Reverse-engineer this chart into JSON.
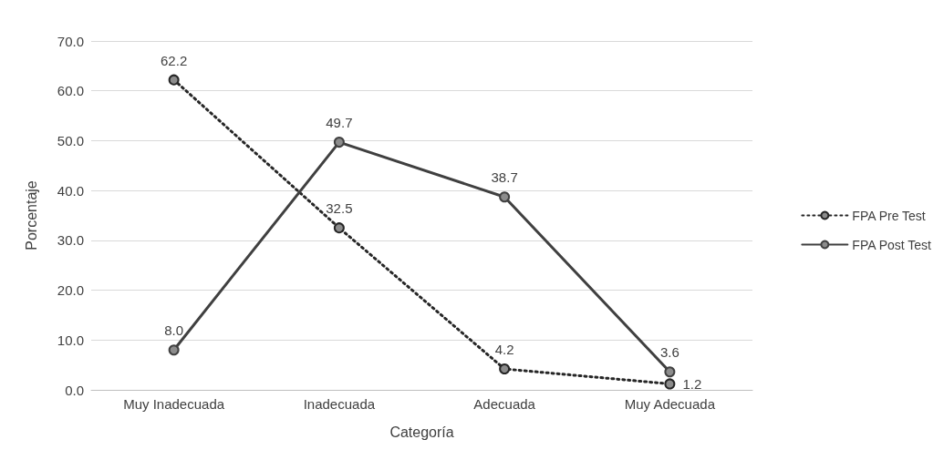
{
  "chart_data": {
    "type": "line",
    "xlabel": "Categoría",
    "ylabel": "Porcentaje",
    "categories": [
      "Muy Inadecuada",
      "Inadecuada",
      "Adecuada",
      "Muy Adecuada"
    ],
    "series": [
      {
        "name": "FPA Pre Test",
        "color": "#262626",
        "values": [
          62.2,
          32.5,
          4.2,
          1.2
        ],
        "line_style": "dotted",
        "value_labels": [
          "62.2",
          "32.5",
          "4.2",
          "1.2"
        ]
      },
      {
        "name": "FPA Post Test",
        "color": "#404040",
        "values": [
          8.0,
          49.7,
          38.7,
          3.6
        ],
        "line_style": "solid",
        "value_labels": [
          "8.0",
          "49.7",
          "38.7",
          "3.6"
        ]
      }
    ],
    "ylim": [
      0,
      70
    ],
    "yticks": [
      {
        "value": 0,
        "label": "0.0"
      },
      {
        "value": 10,
        "label": "10.0"
      },
      {
        "value": 20,
        "label": "20.0"
      },
      {
        "value": 30,
        "label": "30.0"
      },
      {
        "value": 40,
        "label": "40.0"
      },
      {
        "value": 50,
        "label": "50.0"
      },
      {
        "value": 60,
        "label": "60.0"
      },
      {
        "value": 70,
        "label": "70.0"
      }
    ],
    "grid": "y",
    "legend": "right",
    "marker": "circle"
  }
}
